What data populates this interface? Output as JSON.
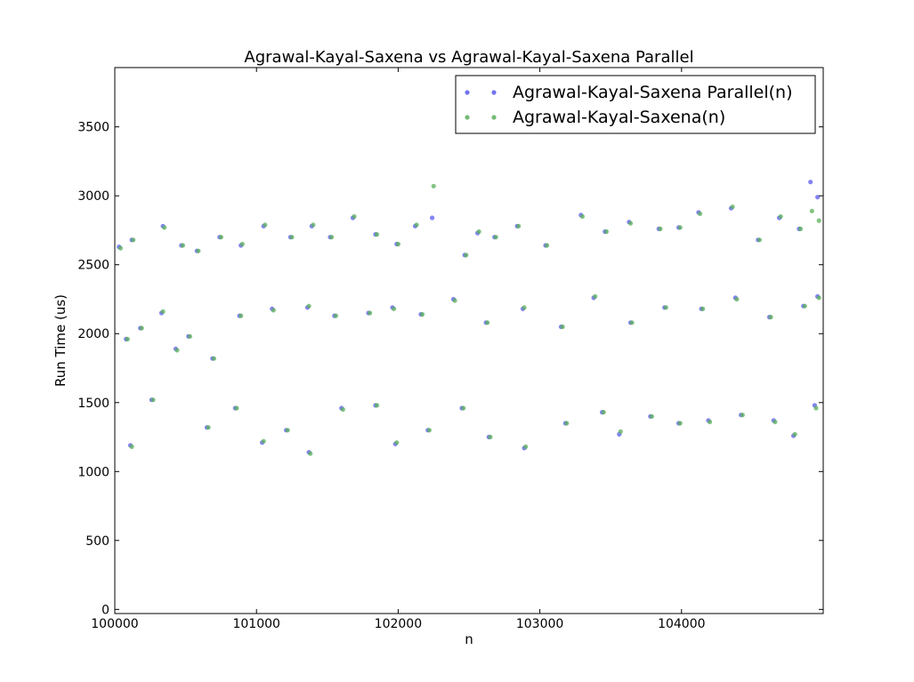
{
  "chart_data": {
    "type": "scatter",
    "title": "Agrawal-Kayal-Saxena vs Agrawal-Kayal-Saxena Parallel",
    "xlabel": "n",
    "ylabel": "Run Time (us)",
    "xlim": [
      100000,
      105000
    ],
    "ylim": [
      -30,
      3930
    ],
    "x_ticks": [
      100000,
      101000,
      102000,
      103000,
      104000
    ],
    "x_tick_labels": [
      "100000",
      "101000",
      "102000",
      "103000",
      "104000"
    ],
    "y_ticks": [
      0,
      500,
      1000,
      1500,
      2000,
      2500,
      3000,
      3500
    ],
    "y_tick_labels": [
      "0",
      "500",
      "1000",
      "1500",
      "2000",
      "2500",
      "3000",
      "3500"
    ],
    "legend_position": "top-right",
    "grid": false,
    "series": [
      {
        "name": "Agrawal-Kayal-Saxena Parallel(n)",
        "color": "#5b5bef",
        "points": [
          [
            100030,
            2630
          ],
          [
            100120,
            2680
          ],
          [
            100340,
            2780
          ],
          [
            100470,
            2640
          ],
          [
            100580,
            2600
          ],
          [
            100740,
            2700
          ],
          [
            100890,
            2640
          ],
          [
            101050,
            2780
          ],
          [
            101240,
            2700
          ],
          [
            101390,
            2780
          ],
          [
            101520,
            2700
          ],
          [
            101680,
            2840
          ],
          [
            101840,
            2720
          ],
          [
            101990,
            2650
          ],
          [
            102120,
            2780
          ],
          [
            102240,
            2840
          ],
          [
            102470,
            2570
          ],
          [
            102560,
            2730
          ],
          [
            102680,
            2700
          ],
          [
            102840,
            2780
          ],
          [
            103040,
            2640
          ],
          [
            103290,
            2860
          ],
          [
            103460,
            2740
          ],
          [
            103630,
            2810
          ],
          [
            103840,
            2760
          ],
          [
            103980,
            2770
          ],
          [
            104120,
            2880
          ],
          [
            104350,
            2910
          ],
          [
            104540,
            2680
          ],
          [
            104690,
            2840
          ],
          [
            104830,
            2760
          ],
          [
            104910,
            3100
          ],
          [
            104960,
            2990
          ],
          [
            100080,
            1960
          ],
          [
            100180,
            2040
          ],
          [
            100330,
            2150
          ],
          [
            100520,
            1980
          ],
          [
            100690,
            1820
          ],
          [
            100880,
            2130
          ],
          [
            101110,
            2180
          ],
          [
            101360,
            2190
          ],
          [
            101550,
            2130
          ],
          [
            101790,
            2150
          ],
          [
            101960,
            2190
          ],
          [
            102160,
            2140
          ],
          [
            102390,
            2250
          ],
          [
            102620,
            2080
          ],
          [
            102880,
            2180
          ],
          [
            103150,
            2050
          ],
          [
            103380,
            2260
          ],
          [
            103640,
            2080
          ],
          [
            103880,
            2190
          ],
          [
            104140,
            2180
          ],
          [
            104380,
            2260
          ],
          [
            104620,
            2120
          ],
          [
            104860,
            2200
          ],
          [
            104960,
            2270
          ],
          [
            100110,
            1190
          ],
          [
            100260,
            1520
          ],
          [
            100430,
            1890
          ],
          [
            100650,
            1320
          ],
          [
            100850,
            1460
          ],
          [
            101040,
            1210
          ],
          [
            101210,
            1300
          ],
          [
            101370,
            1140
          ],
          [
            101600,
            1460
          ],
          [
            101840,
            1480
          ],
          [
            101980,
            1200
          ],
          [
            102210,
            1300
          ],
          [
            102450,
            1460
          ],
          [
            102640,
            1250
          ],
          [
            102890,
            1170
          ],
          [
            103180,
            1350
          ],
          [
            103440,
            1430
          ],
          [
            103560,
            1270
          ],
          [
            103780,
            1400
          ],
          [
            103980,
            1350
          ],
          [
            104190,
            1370
          ],
          [
            104420,
            1410
          ],
          [
            104650,
            1370
          ],
          [
            104790,
            1260
          ],
          [
            104940,
            1480
          ]
        ]
      },
      {
        "name": "Agrawal-Kayal-Saxena(n)",
        "color": "#5aaf5a",
        "points": [
          [
            100040,
            2620
          ],
          [
            100130,
            2680
          ],
          [
            100350,
            2770
          ],
          [
            100480,
            2640
          ],
          [
            100590,
            2600
          ],
          [
            100750,
            2700
          ],
          [
            100900,
            2650
          ],
          [
            101060,
            2790
          ],
          [
            101250,
            2700
          ],
          [
            101400,
            2790
          ],
          [
            101530,
            2700
          ],
          [
            101690,
            2850
          ],
          [
            101850,
            2720
          ],
          [
            102000,
            2650
          ],
          [
            102130,
            2790
          ],
          [
            102250,
            3070
          ],
          [
            102480,
            2570
          ],
          [
            102570,
            2740
          ],
          [
            102690,
            2700
          ],
          [
            102850,
            2780
          ],
          [
            103050,
            2640
          ],
          [
            103300,
            2850
          ],
          [
            103470,
            2740
          ],
          [
            103640,
            2800
          ],
          [
            103850,
            2760
          ],
          [
            103990,
            2770
          ],
          [
            104130,
            2870
          ],
          [
            104360,
            2920
          ],
          [
            104550,
            2680
          ],
          [
            104700,
            2850
          ],
          [
            104840,
            2760
          ],
          [
            104920,
            2890
          ],
          [
            104970,
            2820
          ],
          [
            100090,
            1960
          ],
          [
            100190,
            2040
          ],
          [
            100340,
            2160
          ],
          [
            100530,
            1980
          ],
          [
            100700,
            1820
          ],
          [
            100890,
            2130
          ],
          [
            101120,
            2170
          ],
          [
            101370,
            2200
          ],
          [
            101560,
            2130
          ],
          [
            101800,
            2150
          ],
          [
            101970,
            2180
          ],
          [
            102170,
            2140
          ],
          [
            102400,
            2240
          ],
          [
            102630,
            2080
          ],
          [
            102890,
            2190
          ],
          [
            103160,
            2050
          ],
          [
            103390,
            2270
          ],
          [
            103650,
            2080
          ],
          [
            103890,
            2190
          ],
          [
            104150,
            2180
          ],
          [
            104390,
            2250
          ],
          [
            104630,
            2120
          ],
          [
            104870,
            2200
          ],
          [
            104970,
            2260
          ],
          [
            100120,
            1180
          ],
          [
            100270,
            1520
          ],
          [
            100440,
            1880
          ],
          [
            100660,
            1320
          ],
          [
            100860,
            1460
          ],
          [
            101050,
            1220
          ],
          [
            101220,
            1300
          ],
          [
            101380,
            1130
          ],
          [
            101610,
            1450
          ],
          [
            101850,
            1480
          ],
          [
            101990,
            1210
          ],
          [
            102220,
            1300
          ],
          [
            102460,
            1460
          ],
          [
            102650,
            1250
          ],
          [
            102900,
            1180
          ],
          [
            103190,
            1350
          ],
          [
            103450,
            1430
          ],
          [
            103570,
            1290
          ],
          [
            103790,
            1400
          ],
          [
            103990,
            1350
          ],
          [
            104200,
            1360
          ],
          [
            104430,
            1410
          ],
          [
            104660,
            1360
          ],
          [
            104800,
            1270
          ],
          [
            104950,
            1460
          ]
        ]
      }
    ]
  }
}
